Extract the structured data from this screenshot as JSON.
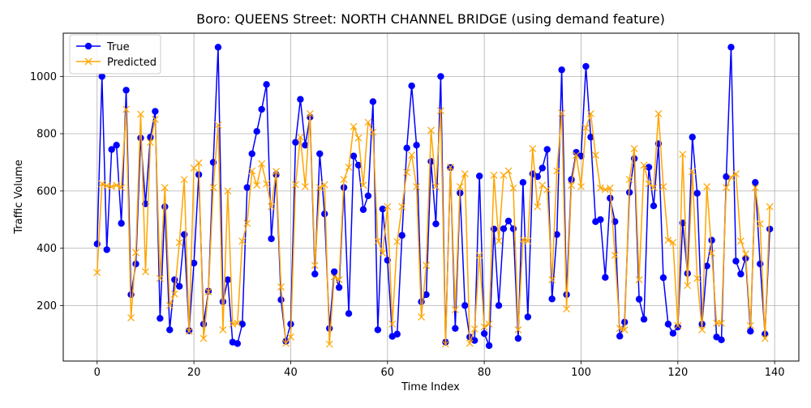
{
  "chart_data": {
    "type": "line",
    "title": "Boro: QUEENS Street: NORTH CHANNEL BRIDGE (using demand feature)",
    "xlabel": "Time Index",
    "ylabel": "Traffic Volume",
    "xlim": [
      -7,
      145
    ],
    "ylim": [
      6,
      1151
    ],
    "xticks": [
      0,
      20,
      40,
      60,
      80,
      100,
      120,
      140
    ],
    "yticks": [
      200,
      400,
      600,
      800,
      1000
    ],
    "grid": true,
    "legend_position": "top-left",
    "series": [
      {
        "name": "True",
        "color": "#0000ff",
        "marker": "circle",
        "values": [
          415,
          1000,
          395,
          745,
          760,
          487,
          952,
          238,
          345,
          785,
          555,
          788,
          878,
          155,
          545,
          115,
          290,
          267,
          448,
          112,
          348,
          657,
          135,
          250,
          700,
          1102,
          213,
          290,
          72,
          67,
          135,
          612,
          730,
          808,
          885,
          972,
          433,
          657,
          220,
          75,
          135,
          770,
          920,
          760,
          858,
          310,
          730,
          520,
          120,
          318,
          263,
          612,
          172,
          722,
          690,
          535,
          583,
          912,
          115,
          537,
          358,
          92,
          100,
          445,
          750,
          967,
          760,
          213,
          238,
          703,
          485,
          1000,
          72,
          682,
          120,
          593,
          200,
          90,
          78,
          652,
          102,
          60,
          467,
          200,
          468,
          495,
          468,
          85,
          630,
          160,
          660,
          650,
          680,
          745,
          223,
          448,
          1023,
          238,
          640,
          735,
          722,
          1035,
          788,
          493,
          500,
          298,
          575,
          493,
          93,
          142,
          595,
          713,
          222,
          152,
          683,
          548,
          765,
          297,
          135,
          103,
          125,
          488,
          312,
          788,
          592,
          135,
          338,
          428,
          90,
          80,
          650,
          1102,
          355,
          310,
          365,
          110,
          630,
          345,
          100,
          467
        ]
      },
      {
        "name": "Predicted",
        "color": "#ffa500",
        "marker": "x",
        "values": [
          315,
          625,
          618,
          615,
          620,
          612,
          885,
          157,
          385,
          868,
          318,
          770,
          850,
          295,
          612,
          200,
          240,
          420,
          640,
          110,
          680,
          698,
          85,
          248,
          612,
          830,
          115,
          600,
          135,
          138,
          425,
          487,
          670,
          620,
          695,
          625,
          545,
          668,
          265,
          68,
          90,
          622,
          788,
          615,
          870,
          340,
          612,
          622,
          65,
          300,
          290,
          640,
          683,
          825,
          785,
          620,
          840,
          805,
          425,
          383,
          545,
          135,
          423,
          545,
          665,
          725,
          615,
          160,
          340,
          812,
          615,
          880,
          65,
          683,
          185,
          615,
          660,
          68,
          118,
          375,
          125,
          135,
          655,
          425,
          655,
          670,
          610,
          115,
          430,
          425,
          748,
          545,
          620,
          605,
          290,
          670,
          872,
          188,
          620,
          725,
          615,
          820,
          870,
          725,
          610,
          605,
          610,
          375,
          120,
          115,
          640,
          748,
          290,
          690,
          625,
          612,
          870,
          615,
          428,
          420,
          130,
          728,
          270,
          668,
          295,
          115,
          615,
          383,
          138,
          138,
          612,
          648,
          660,
          425,
          380,
          130,
          612,
          485,
          85,
          545
        ]
      }
    ]
  }
}
